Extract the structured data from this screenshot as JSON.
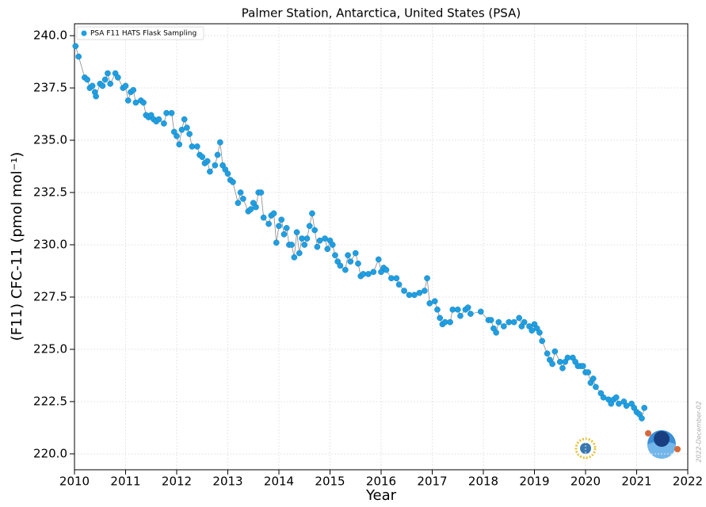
{
  "chart_data": {
    "type": "scatter",
    "title": "Palmer Station, Antarctica, United States (PSA)",
    "xlabel": "Year",
    "ylabel": "(F11) CFC-11 (pmol mol⁻¹)",
    "annotation": "2022-December-02",
    "legend": "upper left",
    "grid": true,
    "xlim": [
      2010,
      2022
    ],
    "ylim": [
      219.24,
      240.57
    ],
    "xticks": [
      2010,
      2011,
      2012,
      2013,
      2014,
      2015,
      2016,
      2017,
      2018,
      2019,
      2020,
      2021,
      2022
    ],
    "yticks": [
      {
        "value": 220,
        "label": "220.0"
      },
      222.5,
      {
        "value": 225,
        "label": "225.0"
      },
      227.5,
      {
        "value": 230,
        "label": "230.0"
      },
      232.5,
      {
        "value": 235,
        "label": "235.0"
      },
      237.5,
      {
        "value": 240,
        "label": "240.0"
      }
    ],
    "series": [
      {
        "name": "PSA F11 HATS Flask Sampling",
        "color": "#1f9fe0",
        "line_color": "#888888",
        "x": [
          2010.02,
          2010.08,
          2010.2,
          2010.25,
          2010.3,
          2010.35,
          2010.4,
          2010.42,
          2010.5,
          2010.55,
          2010.6,
          2010.65,
          2010.7,
          2010.8,
          2010.85,
          2010.95,
          2011.0,
          2011.05,
          2011.1,
          2011.15,
          2011.2,
          2011.3,
          2011.35,
          2011.4,
          2011.45,
          2011.5,
          2011.55,
          2011.6,
          2011.65,
          2011.75,
          2011.8,
          2011.9,
          2011.95,
          2012.0,
          2012.05,
          2012.1,
          2012.15,
          2012.2,
          2012.25,
          2012.3,
          2012.4,
          2012.45,
          2012.5,
          2012.55,
          2012.6,
          2012.65,
          2012.75,
          2012.8,
          2012.85,
          2012.9,
          2012.95,
          2013.0,
          2013.05,
          2013.1,
          2013.2,
          2013.25,
          2013.3,
          2013.4,
          2013.45,
          2013.5,
          2013.55,
          2013.6,
          2013.65,
          2013.7,
          2013.8,
          2013.85,
          2013.9,
          2013.95,
          2014.0,
          2014.05,
          2014.1,
          2014.15,
          2014.2,
          2014.25,
          2014.3,
          2014.35,
          2014.4,
          2014.45,
          2014.5,
          2014.55,
          2014.6,
          2014.65,
          2014.7,
          2014.75,
          2014.8,
          2014.9,
          2014.95,
          2015.0,
          2015.05,
          2015.1,
          2015.15,
          2015.2,
          2015.3,
          2015.35,
          2015.4,
          2015.5,
          2015.55,
          2015.6,
          2015.65,
          2015.75,
          2015.85,
          2015.95,
          2016.0,
          2016.05,
          2016.1,
          2016.2,
          2016.3,
          2016.35,
          2016.45,
          2016.55,
          2016.65,
          2016.75,
          2016.85,
          2016.9,
          2016.95,
          2017.05,
          2017.1,
          2017.15,
          2017.2,
          2017.25,
          2017.35,
          2017.4,
          2017.5,
          2017.55,
          2017.65,
          2017.7,
          2017.75,
          2017.95,
          2018.1,
          2018.15,
          2018.2,
          2018.25,
          2018.3,
          2018.4,
          2018.5,
          2018.6,
          2018.7,
          2018.75,
          2018.8,
          2018.9,
          2018.95,
          2019.0,
          2019.05,
          2019.1,
          2019.15,
          2019.25,
          2019.3,
          2019.35,
          2019.4,
          2019.5,
          2019.55,
          2019.6,
          2019.65,
          2019.75,
          2019.8,
          2019.85,
          2019.9,
          2019.95,
          2020.0,
          2020.05,
          2020.1,
          2020.15,
          2020.2,
          2020.3,
          2020.35,
          2020.45,
          2020.5,
          2020.55,
          2020.6,
          2020.65,
          2020.75,
          2020.8,
          2020.9,
          2020.95,
          2021.0,
          2021.05,
          2021.1,
          2021.15
        ],
        "values": [
          239.5,
          239.0,
          238.0,
          237.9,
          237.5,
          237.6,
          237.3,
          237.1,
          237.7,
          237.6,
          237.9,
          238.2,
          237.7,
          238.2,
          238.0,
          237.5,
          237.6,
          236.9,
          237.3,
          237.4,
          236.8,
          236.9,
          236.8,
          236.2,
          236.1,
          236.2,
          236.0,
          235.9,
          236.0,
          235.8,
          236.3,
          236.3,
          235.4,
          235.2,
          234.8,
          235.5,
          236.0,
          235.6,
          235.3,
          234.7,
          234.7,
          234.3,
          234.2,
          233.9,
          234.0,
          233.5,
          233.8,
          234.3,
          234.9,
          233.8,
          233.6,
          233.4,
          233.1,
          233.0,
          232.0,
          232.5,
          232.2,
          231.6,
          231.7,
          232.0,
          231.8,
          232.5,
          232.5,
          231.3,
          231.0,
          231.4,
          231.5,
          230.1,
          230.9,
          231.2,
          230.5,
          230.8,
          230.0,
          230.0,
          229.4,
          230.6,
          229.6,
          230.3,
          230.0,
          230.3,
          230.9,
          231.5,
          230.7,
          229.9,
          230.2,
          230.3,
          229.8,
          230.2,
          230.0,
          229.5,
          229.2,
          229.0,
          228.8,
          229.5,
          229.2,
          229.6,
          229.1,
          228.5,
          228.6,
          228.6,
          228.7,
          229.3,
          228.7,
          228.9,
          228.8,
          228.4,
          228.4,
          228.1,
          227.8,
          227.6,
          227.6,
          227.7,
          227.8,
          228.4,
          227.2,
          227.3,
          226.9,
          226.5,
          226.2,
          226.3,
          226.3,
          226.9,
          226.9,
          226.6,
          226.9,
          227.0,
          226.7,
          226.8,
          226.4,
          226.4,
          226.0,
          225.8,
          226.3,
          226.1,
          226.3,
          226.3,
          226.5,
          226.1,
          226.3,
          226.1,
          225.9,
          226.2,
          226.0,
          225.8,
          225.4,
          224.8,
          224.5,
          224.3,
          224.9,
          224.4,
          224.1,
          224.4,
          224.6,
          224.6,
          224.4,
          224.2,
          224.2,
          224.2,
          223.9,
          223.9,
          223.4,
          223.6,
          223.2,
          222.9,
          222.7,
          222.6,
          222.4,
          222.6,
          222.7,
          222.4,
          222.5,
          222.3,
          222.4,
          222.2,
          222.0,
          221.9,
          221.7,
          222.2
        ]
      }
    ]
  }
}
